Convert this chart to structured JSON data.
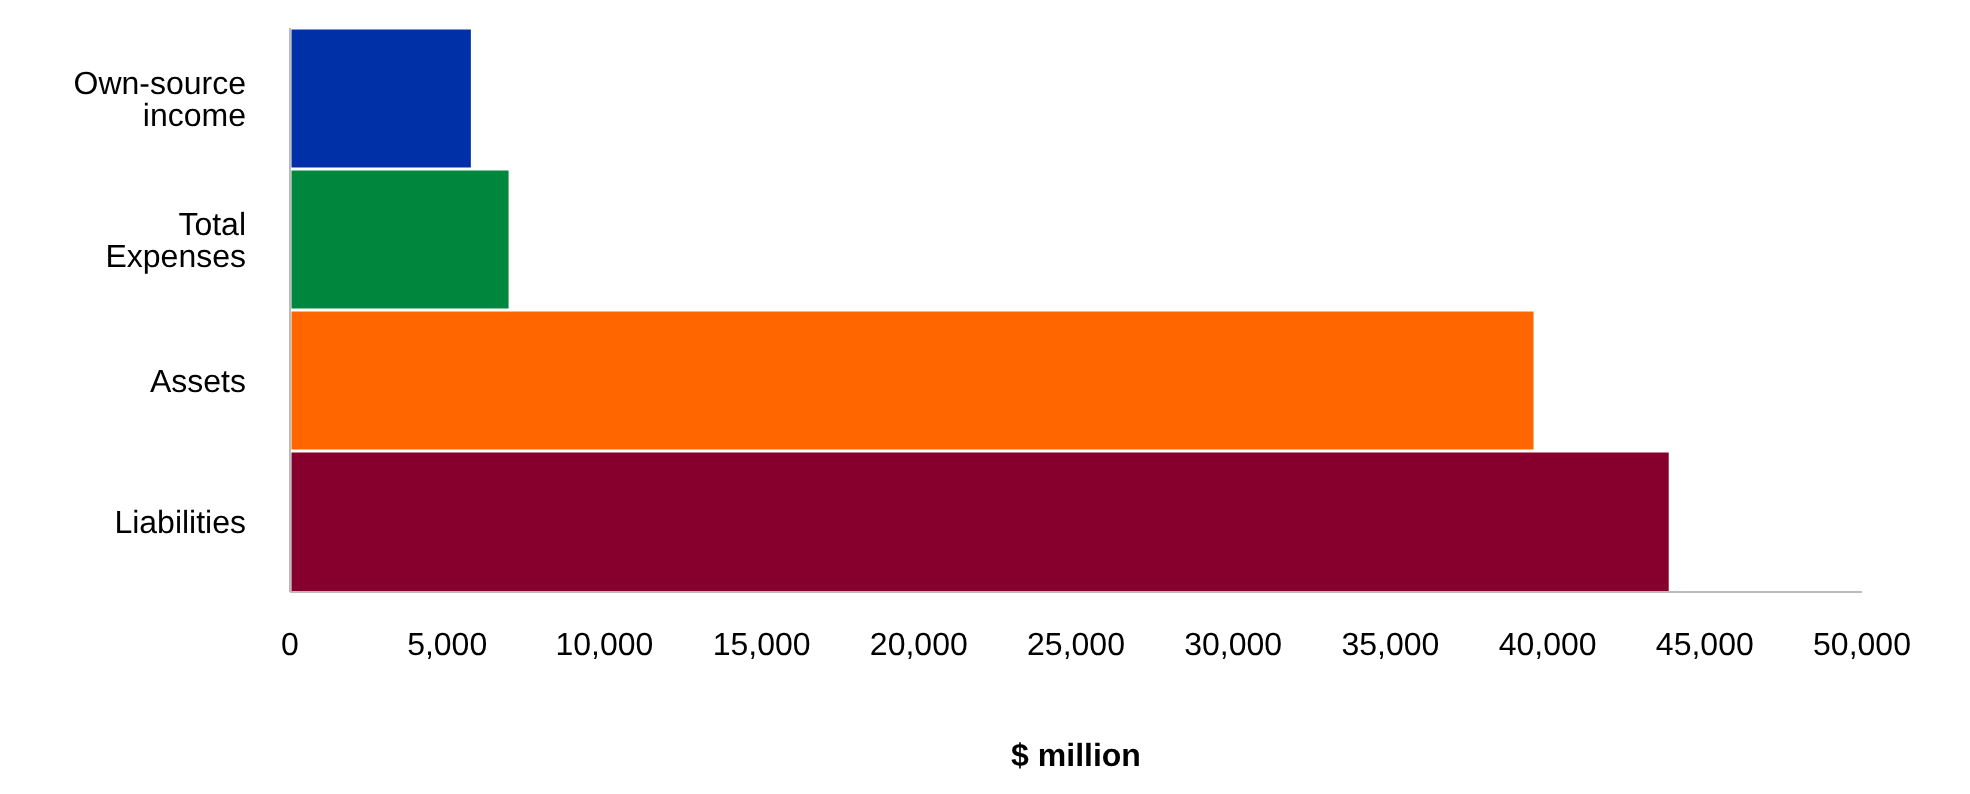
{
  "chart_data": {
    "type": "bar",
    "orientation": "horizontal",
    "xlabel": "$ million",
    "categories": [
      "Own-source income",
      "Total Expenses",
      "Assets",
      "Liabilities"
    ],
    "values": [
      5800,
      7000,
      39600,
      43900
    ],
    "colors": [
      "#0030a8",
      "#00873e",
      "#ff6600",
      "#87002d"
    ],
    "xlim": [
      0,
      50000
    ],
    "xticks": [
      {
        "value": 0,
        "label": "0"
      },
      {
        "value": 5000,
        "label": "5,000"
      },
      {
        "value": 10000,
        "label": "10,000"
      },
      {
        "value": 15000,
        "label": "15,000"
      },
      {
        "value": 20000,
        "label": "20,000"
      },
      {
        "value": 25000,
        "label": "25,000"
      },
      {
        "value": 30000,
        "label": "30,000"
      },
      {
        "value": 35000,
        "label": "35,000"
      },
      {
        "value": 40000,
        "label": "40,000"
      },
      {
        "value": 45000,
        "label": "45,000"
      },
      {
        "value": 50000,
        "label": "50,000"
      }
    ],
    "grid": false,
    "legend": false
  }
}
